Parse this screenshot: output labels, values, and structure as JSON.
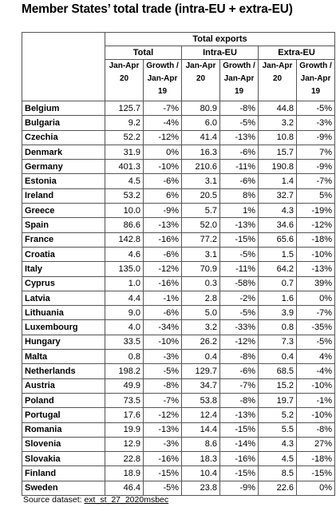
{
  "title": "Member States’ total trade (intra-EU + extra-EU)",
  "header": {
    "group": "Total exports",
    "sections": [
      "Total",
      "Intra-EU",
      "Extra-EU"
    ],
    "col_period": [
      "Jan-Apr",
      "20"
    ],
    "col_growth": [
      "Growth /",
      "Jan-Apr",
      "19"
    ]
  },
  "rows": [
    {
      "country": "Belgium",
      "total": "125.7",
      "total_growth": "-7%",
      "intra": "80.9",
      "intra_growth": "-8%",
      "extra": "44.8",
      "extra_growth": "-5%"
    },
    {
      "country": "Bulgaria",
      "total": "9.2",
      "total_growth": "-4%",
      "intra": "6.0",
      "intra_growth": "-5%",
      "extra": "3.2",
      "extra_growth": "-3%"
    },
    {
      "country": "Czechia",
      "total": "52.2",
      "total_growth": "-12%",
      "intra": "41.4",
      "intra_growth": "-13%",
      "extra": "10.8",
      "extra_growth": "-9%"
    },
    {
      "country": "Denmark",
      "total": "31.9",
      "total_growth": "0%",
      "intra": "16.3",
      "intra_growth": "-6%",
      "extra": "15.7",
      "extra_growth": "7%"
    },
    {
      "country": "Germany",
      "total": "401.3",
      "total_growth": "-10%",
      "intra": "210.6",
      "intra_growth": "-11%",
      "extra": "190.8",
      "extra_growth": "-9%"
    },
    {
      "country": "Estonia",
      "total": "4.5",
      "total_growth": "-6%",
      "intra": "3.1",
      "intra_growth": "-6%",
      "extra": "1.4",
      "extra_growth": "-7%"
    },
    {
      "country": "Ireland",
      "total": "53.2",
      "total_growth": "6%",
      "intra": "20.5",
      "intra_growth": "8%",
      "extra": "32.7",
      "extra_growth": "5%"
    },
    {
      "country": "Greece",
      "total": "10.0",
      "total_growth": "-9%",
      "intra": "5.7",
      "intra_growth": "1%",
      "extra": "4.3",
      "extra_growth": "-19%"
    },
    {
      "country": "Spain",
      "total": "86.6",
      "total_growth": "-13%",
      "intra": "52.0",
      "intra_growth": "-13%",
      "extra": "34.6",
      "extra_growth": "-12%"
    },
    {
      "country": "France",
      "total": "142.8",
      "total_growth": "-16%",
      "intra": "77.2",
      "intra_growth": "-15%",
      "extra": "65.6",
      "extra_growth": "-18%"
    },
    {
      "country": "Croatia",
      "total": "4.6",
      "total_growth": "-6%",
      "intra": "3.1",
      "intra_growth": "-5%",
      "extra": "1.5",
      "extra_growth": "-10%"
    },
    {
      "country": "Italy",
      "total": "135.0",
      "total_growth": "-12%",
      "intra": "70.9",
      "intra_growth": "-11%",
      "extra": "64.2",
      "extra_growth": "-13%"
    },
    {
      "country": "Cyprus",
      "total": "1.0",
      "total_growth": "-16%",
      "intra": "0.3",
      "intra_growth": "-58%",
      "extra": "0.7",
      "extra_growth": "39%"
    },
    {
      "country": "Latvia",
      "total": "4.4",
      "total_growth": "-1%",
      "intra": "2.8",
      "intra_growth": "-2%",
      "extra": "1.6",
      "extra_growth": "0%"
    },
    {
      "country": "Lithuania",
      "total": "9.0",
      "total_growth": "-6%",
      "intra": "5.0",
      "intra_growth": "-5%",
      "extra": "3.9",
      "extra_growth": "-7%"
    },
    {
      "country": "Luxembourg",
      "total": "4.0",
      "total_growth": "-34%",
      "intra": "3.2",
      "intra_growth": "-33%",
      "extra": "0.8",
      "extra_growth": "-35%"
    },
    {
      "country": "Hungary",
      "total": "33.5",
      "total_growth": "-10%",
      "intra": "26.2",
      "intra_growth": "-12%",
      "extra": "7.3",
      "extra_growth": "-5%"
    },
    {
      "country": "Malta",
      "total": "0.8",
      "total_growth": "-3%",
      "intra": "0.4",
      "intra_growth": "-8%",
      "extra": "0.4",
      "extra_growth": "4%"
    },
    {
      "country": "Netherlands",
      "total": "198.2",
      "total_growth": "-5%",
      "intra": "129.7",
      "intra_growth": "-6%",
      "extra": "68.5",
      "extra_growth": "-4%"
    },
    {
      "country": "Austria",
      "total": "49.9",
      "total_growth": "-8%",
      "intra": "34.7",
      "intra_growth": "-7%",
      "extra": "15.2",
      "extra_growth": "-10%"
    },
    {
      "country": "Poland",
      "total": "73.5",
      "total_growth": "-7%",
      "intra": "53.8",
      "intra_growth": "-8%",
      "extra": "19.7",
      "extra_growth": "-1%"
    },
    {
      "country": "Portugal",
      "total": "17.6",
      "total_growth": "-12%",
      "intra": "12.4",
      "intra_growth": "-13%",
      "extra": "5.2",
      "extra_growth": "-10%"
    },
    {
      "country": "Romania",
      "total": "19.9",
      "total_growth": "-13%",
      "intra": "14.4",
      "intra_growth": "-15%",
      "extra": "5.5",
      "extra_growth": "-8%"
    },
    {
      "country": "Slovenia",
      "total": "12.9",
      "total_growth": "-3%",
      "intra": "8.6",
      "intra_growth": "-14%",
      "extra": "4.3",
      "extra_growth": "27%"
    },
    {
      "country": "Slovakia",
      "total": "22.8",
      "total_growth": "-16%",
      "intra": "18.3",
      "intra_growth": "-16%",
      "extra": "4.5",
      "extra_growth": "-18%"
    },
    {
      "country": "Finland",
      "total": "18.9",
      "total_growth": "-15%",
      "intra": "10.4",
      "intra_growth": "-15%",
      "extra": "8.5",
      "extra_growth": "-15%"
    },
    {
      "country": "Sweden",
      "total": "46.4",
      "total_growth": "-5%",
      "intra": "23.8",
      "intra_growth": "-9%",
      "extra": "22.6",
      "extra_growth": "0%"
    }
  ],
  "source": {
    "label": "Source dataset:",
    "dataset": "ext_st_27_2020msbec"
  }
}
